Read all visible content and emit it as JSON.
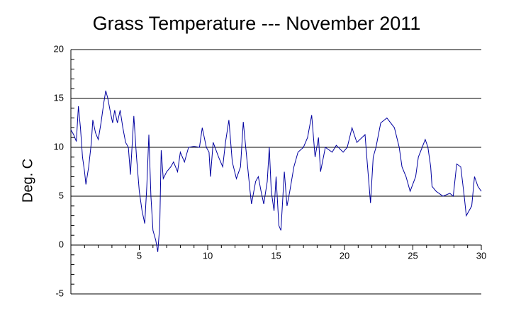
{
  "chart_data": {
    "type": "line",
    "title": "Grass Temperature --- November 2011",
    "ylabel": "Deg. C",
    "x": [
      0,
      0.2,
      0.4,
      0.55,
      0.7,
      0.85,
      1.0,
      1.1,
      1.3,
      1.5,
      1.6,
      1.8,
      2.0,
      2.2,
      2.4,
      2.55,
      2.7,
      2.9,
      3.05,
      3.2,
      3.4,
      3.6,
      3.8,
      4.0,
      4.2,
      4.35,
      4.6,
      4.8,
      5.0,
      5.2,
      5.4,
      5.55,
      5.7,
      5.85,
      6.0,
      6.2,
      6.35,
      6.5,
      6.6,
      6.75,
      7.0,
      7.3,
      7.5,
      7.8,
      8.0,
      8.3,
      8.6,
      9.0,
      9.4,
      9.6,
      9.9,
      10.1,
      10.2,
      10.4,
      10.8,
      11.1,
      11.3,
      11.55,
      11.8,
      12.1,
      12.4,
      12.6,
      12.85,
      13.1,
      13.2,
      13.5,
      13.7,
      13.9,
      14.1,
      14.35,
      14.5,
      14.65,
      14.85,
      15.0,
      15.2,
      15.35,
      15.6,
      15.8,
      16.0,
      16.3,
      16.6,
      17.0,
      17.3,
      17.6,
      17.85,
      18.1,
      18.25,
      18.6,
      19.1,
      19.4,
      19.9,
      20.2,
      20.55,
      20.9,
      21.5,
      21.6,
      21.9,
      22.1,
      22.3,
      22.65,
      23.1,
      23.65,
      24.0,
      24.2,
      24.5,
      24.8,
      25.2,
      25.4,
      25.9,
      26.1,
      26.3,
      26.4,
      26.7,
      27.2,
      27.7,
      27.95,
      28.2,
      28.5,
      28.75,
      28.9,
      29.3,
      29.5,
      29.75,
      30
    ],
    "series": [
      {
        "name": "Grass Temperature",
        "color": "#0000a0",
        "values": [
          11.8,
          11.3,
          10.6,
          14.2,
          12,
          9,
          7.5,
          6.2,
          8,
          10.5,
          12.8,
          11.5,
          10.8,
          12.5,
          14.5,
          15.8,
          15,
          13.5,
          12.5,
          13.8,
          12.5,
          13.8,
          12,
          10.5,
          10,
          7.2,
          13.2,
          9,
          5.5,
          3.5,
          2.2,
          6,
          11.3,
          5,
          1.5,
          0.5,
          -0.7,
          2,
          9.7,
          6.8,
          7.5,
          8,
          8.5,
          7.5,
          9.5,
          8.5,
          10,
          10.1,
          10,
          12,
          10,
          9.5,
          7,
          10.5,
          9,
          8,
          10.5,
          12.8,
          8.5,
          6.8,
          8,
          12.6,
          9,
          5.5,
          4.2,
          6.5,
          7,
          5.5,
          4.2,
          6.5,
          10,
          5.5,
          3.5,
          7,
          2,
          1.5,
          7.5,
          4,
          5.5,
          8,
          9.5,
          10,
          11,
          13.3,
          9,
          11,
          7.5,
          10,
          9.5,
          10.2,
          9.5,
          10,
          12,
          10.5,
          11.3,
          9.5,
          4.3,
          9,
          10,
          12.5,
          13,
          12,
          10,
          8,
          7,
          5.5,
          7,
          9,
          10.8,
          10,
          8,
          6,
          5.5,
          5,
          5.3,
          5,
          8.3,
          8,
          5,
          3,
          4,
          7,
          6,
          5.5
        ]
      }
    ],
    "xlim": [
      0,
      30
    ],
    "xticks": [
      5,
      10,
      15,
      20,
      25,
      30
    ],
    "xminorticks": [
      0,
      1,
      2,
      3,
      4,
      5,
      6,
      7,
      8,
      9,
      10,
      11,
      12,
      13,
      14,
      15,
      16,
      17,
      18,
      19,
      20,
      21,
      22,
      23,
      24,
      25,
      26,
      27,
      28,
      29,
      30
    ],
    "ylim": [
      -5,
      20
    ],
    "yticks": [
      -5,
      0,
      5,
      10,
      15,
      20
    ],
    "yminorticks": [
      -5,
      -4,
      -3,
      -2,
      -1,
      0,
      1,
      2,
      3,
      4,
      5,
      6,
      7,
      8,
      9,
      10,
      11,
      12,
      13,
      14,
      15,
      16,
      17,
      18,
      19,
      20
    ],
    "grid": true
  }
}
